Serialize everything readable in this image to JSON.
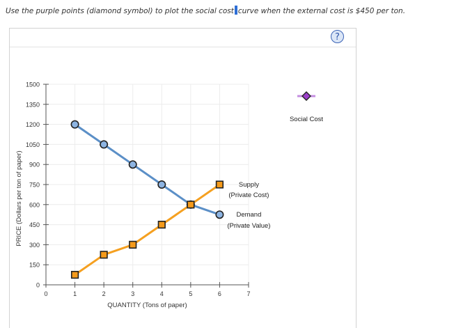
{
  "instruction": {
    "before_cursor": "Use the purple points (diamond symbol) to plot the social cost",
    "after_cursor": "curve when the external cost is $450 per ton."
  },
  "help": {
    "label": "?"
  },
  "palette": {
    "label": "Social Cost",
    "color": "#9b3fc9",
    "line_color": "#c48de0"
  },
  "chart_data": {
    "type": "line",
    "xlabel": "QUANTITY (Tons of paper)",
    "ylabel": "PRICE (Dollars per ton of paper)",
    "xlim": [
      0,
      7
    ],
    "ylim": [
      0,
      1500
    ],
    "xticks": [
      0,
      1,
      2,
      3,
      4,
      5,
      6,
      7
    ],
    "yticks": [
      0,
      150,
      300,
      450,
      600,
      750,
      900,
      1050,
      1200,
      1350,
      1500
    ],
    "grid": true,
    "series": [
      {
        "name": "Demand",
        "subtitle": "(Private Value)",
        "marker": "circle",
        "color": "#5b8fc7",
        "fill": "#8db4e2",
        "x": [
          1,
          2,
          3,
          4,
          5,
          6
        ],
        "y": [
          1200,
          1050,
          900,
          750,
          600,
          525
        ]
      },
      {
        "name": "Supply",
        "subtitle": "(Private Cost)",
        "marker": "square",
        "color": "#f5a020",
        "fill": "#f59a1a",
        "x": [
          1,
          2,
          3,
          4,
          5,
          6
        ],
        "y": [
          75,
          225,
          300,
          450,
          600,
          750
        ]
      }
    ]
  }
}
